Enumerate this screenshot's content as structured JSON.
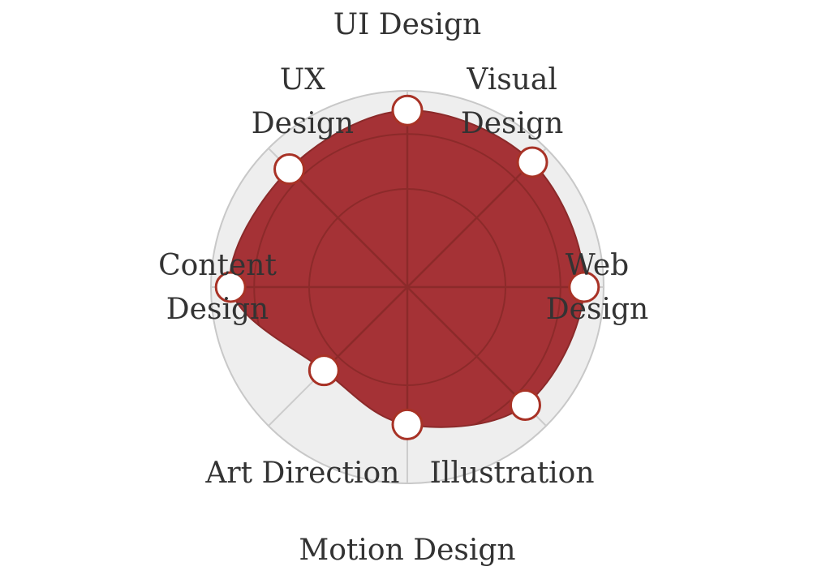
{
  "chart_data": {
    "type": "radar",
    "title": "",
    "categories": [
      "UI Design",
      "Visual Design",
      "Web Design",
      "Illustration",
      "Motion Design",
      "Art Direction",
      "Content Design",
      "UX Design"
    ],
    "label_lines": [
      [
        "UI Design"
      ],
      [
        "Visual",
        "Design"
      ],
      [
        "Web",
        "Design"
      ],
      [
        "Illustration"
      ],
      [
        "Motion Design"
      ],
      [
        "Art Direction"
      ],
      [
        "Content",
        "Design"
      ],
      [
        "UX",
        "Design"
      ]
    ],
    "series": [
      {
        "values": [
          0.9,
          0.9,
          0.9,
          0.85,
          0.7,
          0.6,
          0.9,
          0.85
        ]
      }
    ],
    "rlim": [
      0,
      1
    ],
    "rings": [
      0.5,
      0.78,
      1.0
    ],
    "grid": true,
    "legend": "none",
    "colors": {
      "fill": "#a53236",
      "stroke": "#8b2a2a",
      "marker_fill": "#ffffff",
      "marker_stroke": "#a83226",
      "outer_disc": "#eeeeee",
      "outer_ring": "#c8c8c8",
      "inner_grid": "#8c2a2a",
      "outer_spoke": "#cccccc",
      "label": "#333333"
    }
  }
}
